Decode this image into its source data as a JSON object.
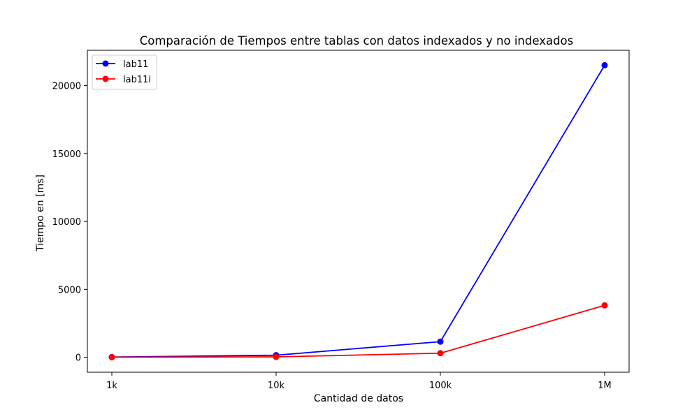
{
  "chart_data": {
    "type": "line",
    "title": "Comparación de Tiempos entre tablas con datos indexados y no indexados",
    "xlabel": "Cantidad de datos",
    "ylabel": "Tiempo en [ms]",
    "categories": [
      "1k",
      "10k",
      "100k",
      "1M"
    ],
    "ylim": [
      -1100,
      22600
    ],
    "yticks": [
      0,
      5000,
      10000,
      15000,
      20000
    ],
    "ytick_labels": [
      "0",
      "5000",
      "10000",
      "15000",
      "20000"
    ],
    "grid": false,
    "legend_position": "top-left",
    "series": [
      {
        "name": "lab11",
        "color": "#0000ff",
        "marker": "circle",
        "values": [
          15,
          150,
          1150,
          21500
        ]
      },
      {
        "name": "lab11i",
        "color": "#ff0000",
        "marker": "circle",
        "values": [
          5,
          30,
          300,
          3820
        ]
      }
    ]
  }
}
